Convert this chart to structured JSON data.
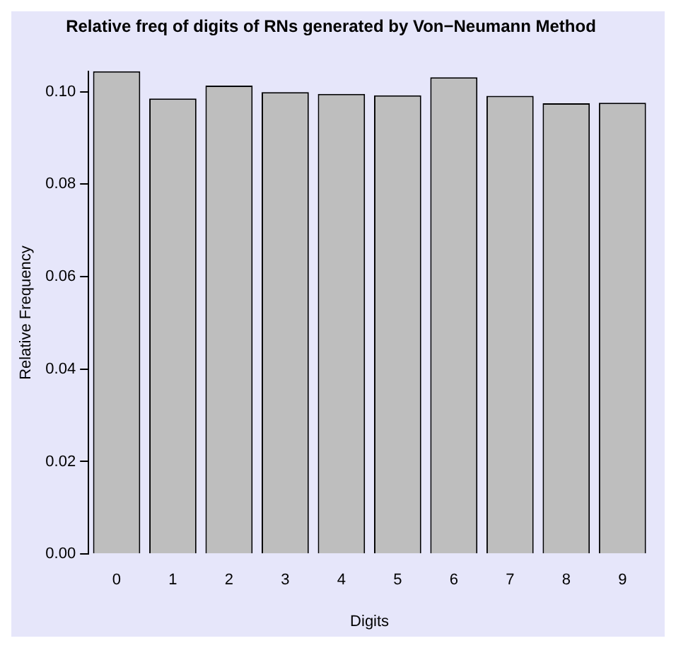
{
  "chart_data": {
    "type": "bar",
    "title": "Relative freq of digits of RNs generated by Von−Neumann Method",
    "xlabel": "Digits",
    "ylabel": "Relative Frequency",
    "categories": [
      "0",
      "1",
      "2",
      "3",
      "4",
      "5",
      "6",
      "7",
      "8",
      "9"
    ],
    "values": [
      0.1044,
      0.0985,
      0.1013,
      0.0999,
      0.0995,
      0.0992,
      0.1031,
      0.0991,
      0.0975,
      0.0976
    ],
    "color": "#bebebe",
    "ylim": [
      0,
      0.1044
    ],
    "yticks": [
      {
        "value": 0,
        "label": "0.00"
      },
      {
        "value": 0.02,
        "label": "0.02"
      },
      {
        "value": 0.04,
        "label": "0.04"
      },
      {
        "value": 0.06,
        "label": "0.06"
      },
      {
        "value": 0.08,
        "label": "0.08"
      },
      {
        "value": 0.1,
        "label": "0.10"
      }
    ],
    "grid": false,
    "legend": false
  }
}
